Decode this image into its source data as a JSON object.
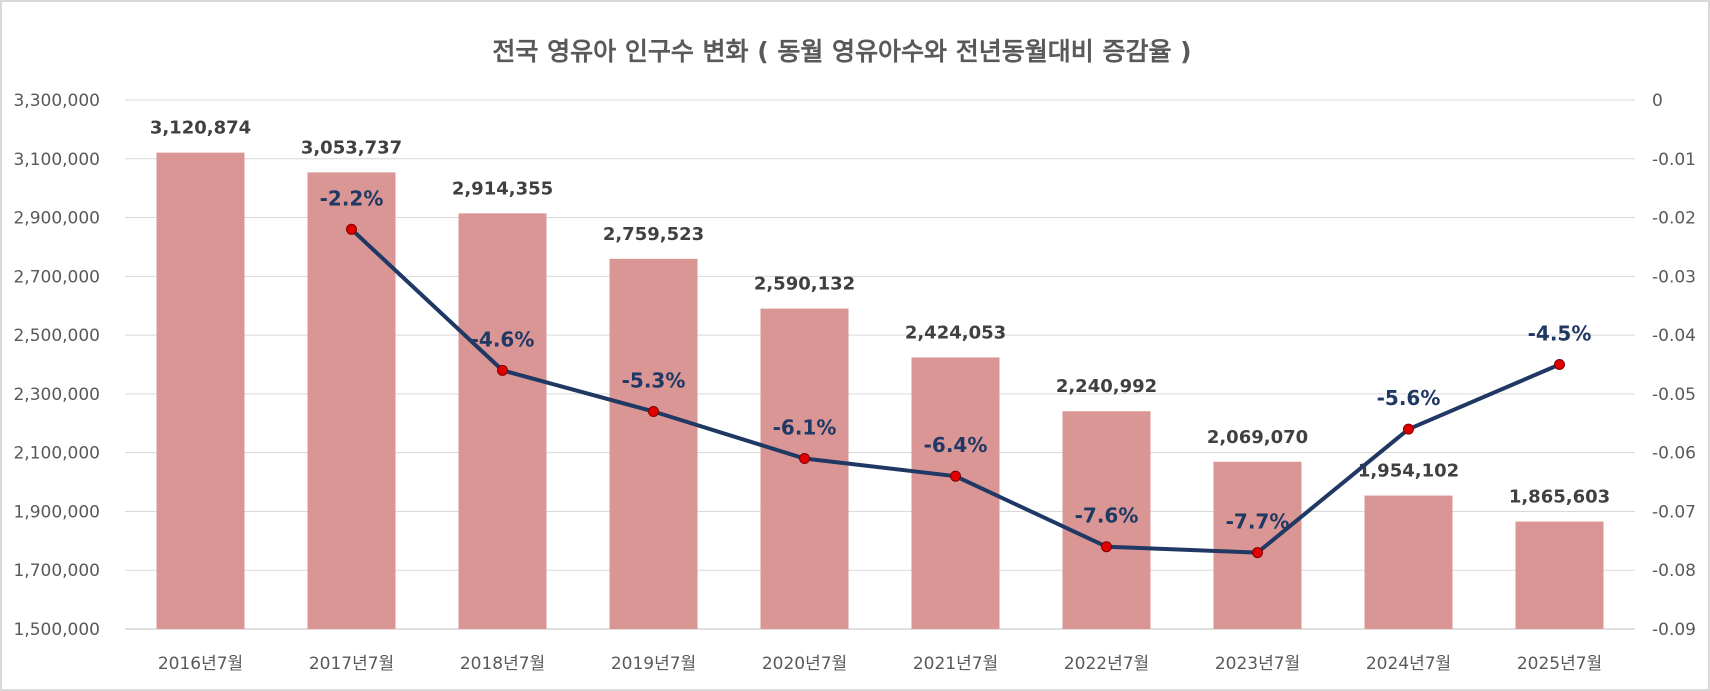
{
  "chart_data": {
    "type": "bar",
    "title": "전국 영유아 인구수 변화 ( 동월 영유아수와 전년동월대비 증감율 )",
    "categories": [
      "2016년7월",
      "2017년7월",
      "2018년7월",
      "2019년7월",
      "2020년7월",
      "2021년7월",
      "2022년7월",
      "2023년7월",
      "2024년7월",
      "2025년7월"
    ],
    "series": [
      {
        "type": "bar",
        "axis": "left",
        "values": [
          3120874,
          3053737,
          2914355,
          2759523,
          2590132,
          2424053,
          2240992,
          2069070,
          1954102,
          1865603
        ],
        "value_labels": [
          "3,120,874",
          "3,053,737",
          "2,914,355",
          "2,759,523",
          "2,590,132",
          "2,424,053",
          "2,240,992",
          "2,069,070",
          "1,954,102",
          "1,865,603"
        ],
        "color": "#d99694"
      },
      {
        "type": "line",
        "axis": "right",
        "values": [
          null,
          -0.022,
          -0.046,
          -0.053,
          -0.061,
          -0.064,
          -0.076,
          -0.077,
          -0.056,
          -0.045
        ],
        "value_labels": [
          null,
          "-2.2%",
          "-4.6%",
          "-5.3%",
          "-6.1%",
          "-6.4%",
          "-7.6%",
          "-7.7%",
          "-5.6%",
          "-4.5%"
        ],
        "color": "#1f3864",
        "marker_color": "#e00000"
      }
    ],
    "y_left": {
      "ylim": [
        1500000,
        3300000
      ],
      "ticks": [
        "1,500,000",
        "1,700,000",
        "1,900,000",
        "2,100,000",
        "2,300,000",
        "2,500,000",
        "2,700,000",
        "2,900,000",
        "3,100,000",
        "3,300,000"
      ]
    },
    "y_right": {
      "ylim": [
        -0.09,
        0
      ],
      "ticks": [
        "-0.09",
        "-0.08",
        "-0.07",
        "-0.06",
        "-0.05",
        "-0.04",
        "-0.03",
        "-0.02",
        "-0.01",
        "0"
      ]
    },
    "grid": true,
    "legend": "none"
  }
}
